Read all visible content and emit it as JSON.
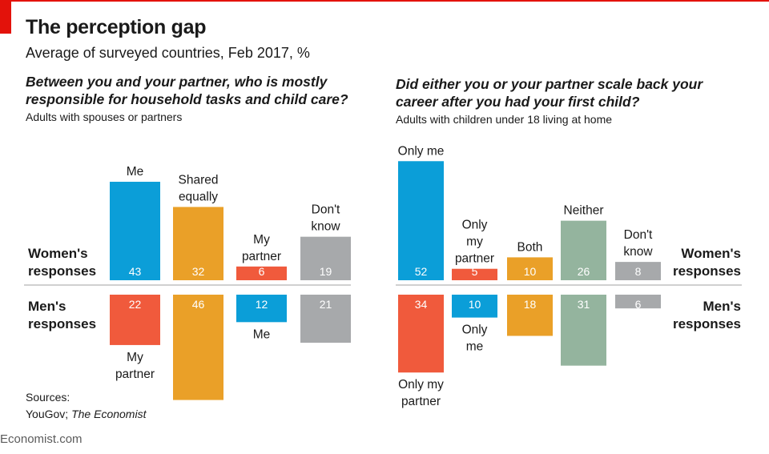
{
  "header": {
    "title": "The perception gap",
    "subtitle": "Average of surveyed countries, Feb 2017, %"
  },
  "panels": [
    {
      "question": [
        "Between you and your partner, who is mostly",
        "responsible for household tasks and child care?"
      ],
      "subtitle": "Adults with spouses or partners"
    },
    {
      "question": [
        "Did either you or your partner scale back your",
        "career after you had your first child?"
      ],
      "subtitle": "Adults with children under 18 living at home"
    }
  ],
  "sources": {
    "label": "Sources:",
    "line1": "YouGov;",
    "line2": "The Economist"
  },
  "footer": "Economist.com",
  "colors": {
    "blue": "#0b9ed8",
    "orange": "#eaa028",
    "red": "#f05a3c",
    "grey": "#a7a9ab",
    "green": "#94b49e",
    "axis": "#b3b3b3",
    "brand": "#e3120b"
  },
  "chart_data": [
    {
      "type": "bar",
      "title": "Between you and your partner, who is mostly responsible for household tasks and child care?",
      "unit": "%",
      "row_labels": {
        "women": [
          "Women's",
          "responses"
        ],
        "men": [
          "Men's",
          "responses"
        ]
      },
      "categories": [
        {
          "women": {
            "label": [
              "Me"
            ],
            "value": 43,
            "color": "blue"
          },
          "men": {
            "label": [
              "My",
              "partner"
            ],
            "value": 22,
            "color": "red"
          }
        },
        {
          "women": {
            "label": [
              "Shared",
              "equally"
            ],
            "value": 32,
            "color": "orange"
          },
          "men": {
            "label": [],
            "value": 46,
            "color": "orange"
          }
        },
        {
          "women": {
            "label": [
              "My",
              "partner"
            ],
            "value": 6,
            "color": "red"
          },
          "men": {
            "label": [
              "Me"
            ],
            "value": 12,
            "color": "blue"
          }
        },
        {
          "women": {
            "label": [
              "Don't",
              "know"
            ],
            "value": 19,
            "color": "grey"
          },
          "men": {
            "label": [],
            "value": 21,
            "color": "grey"
          }
        }
      ]
    },
    {
      "type": "bar",
      "title": "Did either you or your partner scale back your career after you had your first child?",
      "unit": "%",
      "row_labels": {
        "women": [
          "Women's",
          "responses"
        ],
        "men": [
          "Men's",
          "responses"
        ]
      },
      "categories": [
        {
          "women": {
            "label": [
              "Only me"
            ],
            "value": 52,
            "color": "blue"
          },
          "men": {
            "label": [
              "Only my",
              "partner"
            ],
            "value": 34,
            "color": "red"
          }
        },
        {
          "women": {
            "label": [
              "Only",
              "my",
              "partner"
            ],
            "value": 5,
            "color": "red"
          },
          "men": {
            "label": [
              "Only",
              "me"
            ],
            "value": 10,
            "color": "blue"
          }
        },
        {
          "women": {
            "label": [
              "Both"
            ],
            "value": 10,
            "color": "orange"
          },
          "men": {
            "label": [],
            "value": 18,
            "color": "orange"
          }
        },
        {
          "women": {
            "label": [
              "Neither"
            ],
            "value": 26,
            "color": "green"
          },
          "men": {
            "label": [],
            "value": 31,
            "color": "green"
          }
        },
        {
          "women": {
            "label": [
              "Don't",
              "know"
            ],
            "value": 8,
            "color": "grey"
          },
          "men": {
            "label": [],
            "value": 6,
            "color": "grey"
          }
        }
      ]
    }
  ]
}
